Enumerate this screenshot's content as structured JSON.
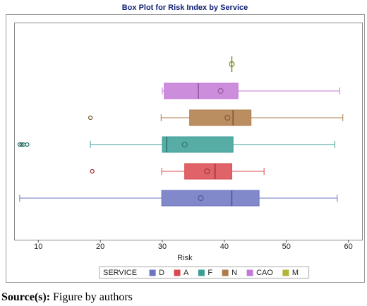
{
  "chart_data": {
    "type": "box",
    "title": "Box Plot for Risk Index by Service",
    "x_label": "Risk",
    "xlim": [
      6.1,
      62.2
    ],
    "xticks": [
      10,
      20,
      30,
      40,
      50,
      60
    ],
    "legend_title": "SERVICE",
    "series": [
      {
        "name": "D",
        "color": "#6b74c2",
        "min": 7.0,
        "q1": 29.9,
        "median": 41.2,
        "q3": 45.6,
        "max": 58.2,
        "mean": 36.2,
        "outliers": []
      },
      {
        "name": "A",
        "color": "#d9484f",
        "min": 29.9,
        "q1": 33.6,
        "median": 38.5,
        "q3": 41.2,
        "max": 46.4,
        "mean": 37.2,
        "outliers": [
          18.7
        ]
      },
      {
        "name": "F",
        "color": "#3a9e96",
        "min": 18.4,
        "q1": 30.0,
        "median": 30.7,
        "q3": 41.4,
        "max": 57.8,
        "mean": 33.6,
        "outliers": [
          7.0,
          7.3,
          7.6,
          8.2
        ]
      },
      {
        "name": "N",
        "color": "#ae7a45",
        "min": 29.8,
        "q1": 34.4,
        "median": 41.4,
        "q3": 44.3,
        "max": 59.1,
        "mean": 40.5,
        "outliers": [
          18.4
        ]
      },
      {
        "name": "CAO",
        "color": "#c37ad6",
        "min": 30.0,
        "q1": 30.3,
        "median": 35.8,
        "q3": 42.2,
        "max": 58.6,
        "mean": 39.4,
        "outliers": []
      },
      {
        "name": "M",
        "color": "#b3b535",
        "min": 41.2,
        "q1": 41.2,
        "median": 41.2,
        "q3": 41.2,
        "max": 41.2,
        "mean": 41.2,
        "outliers": []
      }
    ]
  },
  "caption": {
    "label": "Source(s):",
    "text": "Figure by authors"
  }
}
